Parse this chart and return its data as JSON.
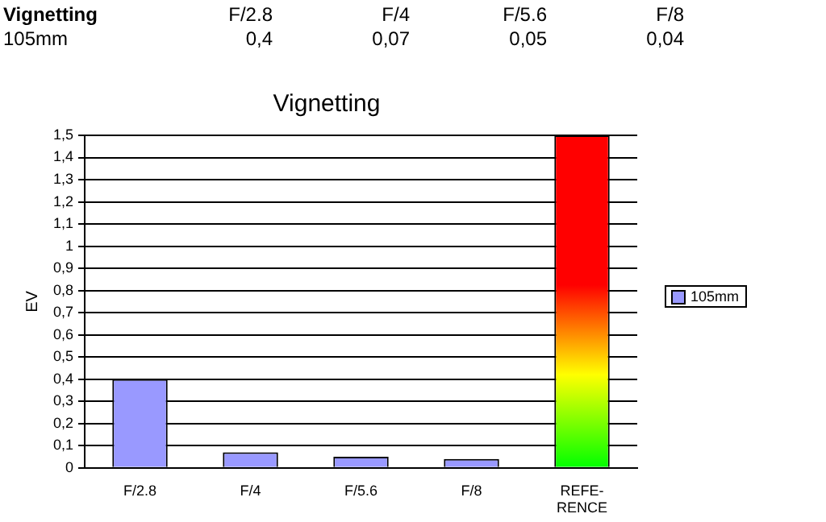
{
  "chart_data": {
    "type": "bar",
    "title": "Vignetting",
    "ylabel": "EV",
    "categories": [
      "F/2.8",
      "F/4",
      "F/5.6",
      "F/8",
      "REFE-RENCE"
    ],
    "series": [
      {
        "name": "105mm",
        "color": "#9999ff",
        "colors": [
          "#9999ff",
          "#9999ff",
          "#9999ff",
          "#9999ff",
          "#ff0000"
        ],
        "values": [
          0.4,
          0.07,
          0.05,
          0.04,
          1.5
        ]
      }
    ],
    "annotations": [
      "0,4",
      "0,07",
      "0,05",
      "0,04"
    ],
    "ylim": [
      0,
      1.5
    ],
    "yticks": [
      {
        "value": 0,
        "label": "0"
      },
      {
        "value": 0.1,
        "label": "0,1"
      },
      {
        "value": 0.2,
        "label": "0,2"
      },
      {
        "value": 0.3,
        "label": "0,3"
      },
      {
        "value": 0.4,
        "label": "0,4"
      },
      {
        "value": 0.5,
        "label": "0,5"
      },
      {
        "value": 0.6,
        "label": "0,6"
      },
      {
        "value": 0.7,
        "label": "0,7"
      },
      {
        "value": 0.8,
        "label": "0,8"
      },
      {
        "value": 0.9,
        "label": "0,9"
      },
      {
        "value": 1,
        "label": "1"
      },
      {
        "value": 1.1,
        "label": "1,1"
      },
      {
        "value": 1.2,
        "label": "1,2"
      },
      {
        "value": 1.3,
        "label": "1,3"
      },
      {
        "value": 1.4,
        "label": "1,4"
      },
      {
        "value": 1.5,
        "label": "1,5"
      }
    ],
    "grid": "y",
    "legend": "right"
  }
}
